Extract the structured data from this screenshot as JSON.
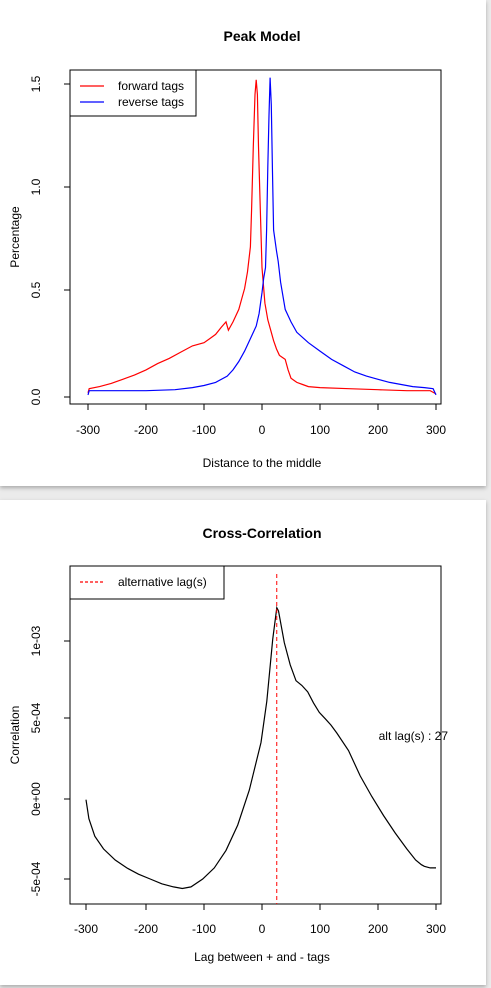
{
  "chart_data": [
    {
      "type": "line",
      "title": "Peak Model",
      "xlabel": "Distance to the middle",
      "ylabel": "Percentage",
      "xlim": [
        -300,
        300
      ],
      "ylim": [
        0,
        1.55
      ],
      "xticks": [
        "-300",
        "-200",
        "-100",
        "0",
        "100",
        "200",
        "300"
      ],
      "yticks": [
        "0.0",
        "0.5",
        "1.0",
        "1.5"
      ],
      "grid": false,
      "legend_position": "top-left",
      "series": [
        {
          "name": "forward tags",
          "color": "#ff0000",
          "points": [
            [
              -300,
              0.02
            ],
            [
              -298,
              0.04
            ],
            [
              -280,
              0.05
            ],
            [
              -260,
              0.065
            ],
            [
              -240,
              0.085
            ],
            [
              -220,
              0.105
            ],
            [
              -200,
              0.13
            ],
            [
              -180,
              0.16
            ],
            [
              -160,
              0.185
            ],
            [
              -140,
              0.215
            ],
            [
              -120,
              0.245
            ],
            [
              -100,
              0.26
            ],
            [
              -90,
              0.28
            ],
            [
              -80,
              0.3
            ],
            [
              -70,
              0.335
            ],
            [
              -62,
              0.36
            ],
            [
              -58,
              0.32
            ],
            [
              -50,
              0.36
            ],
            [
              -40,
              0.42
            ],
            [
              -35,
              0.47
            ],
            [
              -30,
              0.52
            ],
            [
              -25,
              0.6
            ],
            [
              -20,
              0.72
            ],
            [
              -18,
              0.9
            ],
            [
              -15,
              1.2
            ],
            [
              -12,
              1.45
            ],
            [
              -10,
              1.52
            ],
            [
              -8,
              1.45
            ],
            [
              -6,
              1.2
            ],
            [
              -3,
              0.9
            ],
            [
              0,
              0.62
            ],
            [
              5,
              0.45
            ],
            [
              10,
              0.37
            ],
            [
              15,
              0.32
            ],
            [
              20,
              0.27
            ],
            [
              25,
              0.23
            ],
            [
              30,
              0.2
            ],
            [
              35,
              0.19
            ],
            [
              40,
              0.18
            ],
            [
              45,
              0.13
            ],
            [
              50,
              0.09
            ],
            [
              60,
              0.07
            ],
            [
              70,
              0.06
            ],
            [
              80,
              0.05
            ],
            [
              100,
              0.045
            ],
            [
              150,
              0.04
            ],
            [
              200,
              0.035
            ],
            [
              250,
              0.03
            ],
            [
              290,
              0.03
            ],
            [
              300,
              0.015
            ]
          ]
        },
        {
          "name": "reverse tags",
          "color": "#0000ff",
          "points": [
            [
              -300,
              0.01
            ],
            [
              -298,
              0.03
            ],
            [
              -250,
              0.03
            ],
            [
              -200,
              0.03
            ],
            [
              -150,
              0.035
            ],
            [
              -120,
              0.045
            ],
            [
              -100,
              0.055
            ],
            [
              -80,
              0.07
            ],
            [
              -60,
              0.1
            ],
            [
              -50,
              0.13
            ],
            [
              -40,
              0.17
            ],
            [
              -30,
              0.22
            ],
            [
              -20,
              0.28
            ],
            [
              -10,
              0.34
            ],
            [
              -5,
              0.4
            ],
            [
              0,
              0.5
            ],
            [
              3,
              0.57
            ],
            [
              6,
              0.62
            ],
            [
              8,
              0.8
            ],
            [
              10,
              1.1
            ],
            [
              12,
              1.35
            ],
            [
              14,
              1.53
            ],
            [
              16,
              1.4
            ],
            [
              18,
              1.1
            ],
            [
              20,
              0.8
            ],
            [
              25,
              0.7
            ],
            [
              28,
              0.65
            ],
            [
              32,
              0.55
            ],
            [
              40,
              0.42
            ],
            [
              50,
              0.36
            ],
            [
              60,
              0.31
            ],
            [
              80,
              0.26
            ],
            [
              100,
              0.22
            ],
            [
              120,
              0.18
            ],
            [
              140,
              0.15
            ],
            [
              160,
              0.12
            ],
            [
              180,
              0.1
            ],
            [
              200,
              0.085
            ],
            [
              220,
              0.07
            ],
            [
              240,
              0.06
            ],
            [
              260,
              0.05
            ],
            [
              280,
              0.045
            ],
            [
              295,
              0.04
            ],
            [
              300,
              0.01
            ]
          ]
        }
      ]
    },
    {
      "type": "line",
      "title": "Cross-Correlation",
      "xlabel": "Lag between + and - tags",
      "ylabel": "Correlation",
      "xlim": [
        -300,
        300
      ],
      "ylim": [
        -0.00058,
        0.00137
      ],
      "xticks": [
        "-300",
        "-200",
        "-100",
        "0",
        "100",
        "200",
        "300"
      ],
      "yticks": [
        "-5e-04",
        "0e+00",
        "5e-04",
        "1e-03"
      ],
      "grid": false,
      "legend_position": "top-left",
      "legend": [
        {
          "label": "alternative lag(s)",
          "color": "#ff0000",
          "style": "dashed"
        }
      ],
      "vline": {
        "x": 27,
        "color": "#ff0000",
        "style": "dashed"
      },
      "annotation": "alt lag(s) : 27",
      "series": [
        {
          "color": "#000000",
          "points": [
            [
              -300,
              0.0
            ],
            [
              -295,
              -0.00012
            ],
            [
              -285,
              -0.00023
            ],
            [
              -270,
              -0.00031
            ],
            [
              -250,
              -0.00038
            ],
            [
              -230,
              -0.00043
            ],
            [
              -210,
              -0.00047
            ],
            [
              -190,
              -0.0005
            ],
            [
              -170,
              -0.00053
            ],
            [
              -150,
              -0.00055
            ],
            [
              -135,
              -0.00056
            ],
            [
              -120,
              -0.00055
            ],
            [
              -100,
              -0.0005
            ],
            [
              -80,
              -0.00043
            ],
            [
              -60,
              -0.00032
            ],
            [
              -40,
              -0.00016
            ],
            [
              -20,
              6e-05
            ],
            [
              0,
              0.00036
            ],
            [
              10,
              0.00062
            ],
            [
              20,
              0.00101
            ],
            [
              27,
              0.00121
            ],
            [
              30,
              0.00119
            ],
            [
              40,
              0.00099
            ],
            [
              50,
              0.00085
            ],
            [
              60,
              0.00075
            ],
            [
              70,
              0.00072
            ],
            [
              80,
              0.00068
            ],
            [
              90,
              0.00061
            ],
            [
              100,
              0.00055
            ],
            [
              110,
              0.00051
            ],
            [
              120,
              0.00047
            ],
            [
              130,
              0.00042
            ],
            [
              150,
              0.00031
            ],
            [
              170,
              0.00015
            ],
            [
              190,
              2e-05
            ],
            [
              210,
              -0.0001
            ],
            [
              230,
              -0.00021
            ],
            [
              250,
              -0.00031
            ],
            [
              265,
              -0.00038
            ],
            [
              275,
              -0.00041
            ],
            [
              280,
              -0.00042
            ],
            [
              290,
              -0.00043
            ],
            [
              300,
              -0.00043
            ]
          ]
        }
      ]
    }
  ]
}
